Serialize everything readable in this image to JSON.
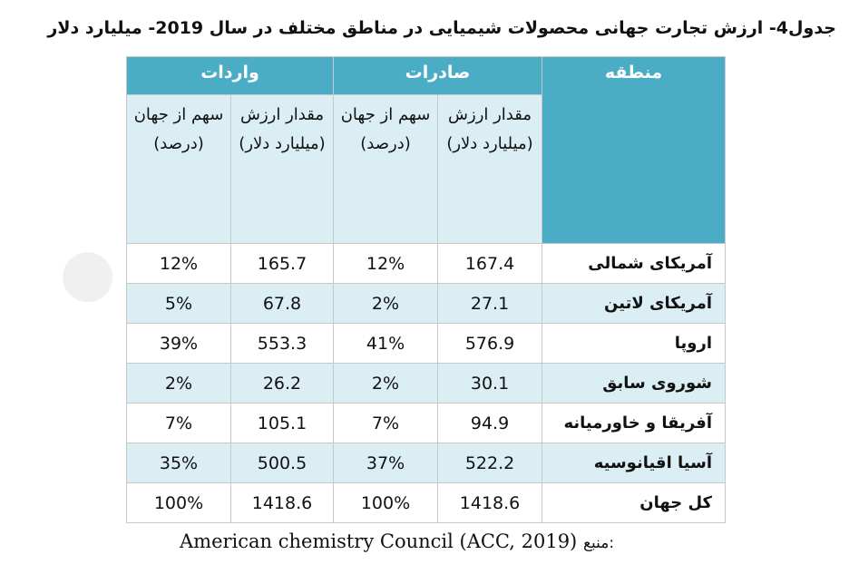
{
  "title": "جدول4- ارزش تجارت جهانی محصولات شیمیایی در مناطق مختلف در سال 2019- میلیارد دلار",
  "table": {
    "region_header": "منطقه",
    "imports_header": "واردات",
    "exports_header": "صادرات",
    "sub_share": "سهم از جهان (درصد)",
    "sub_value": "مقدار ارزش (میلیارد دلار)",
    "rows": [
      {
        "region": "آمریکای شمالی",
        "imp_share": "12%",
        "imp_value": "165.7",
        "exp_share": "12%",
        "exp_value": "167.4"
      },
      {
        "region": "آمریکای لاتین",
        "imp_share": "5%",
        "imp_value": "67.8",
        "exp_share": "2%",
        "exp_value": "27.1"
      },
      {
        "region": "اروپا",
        "imp_share": "39%",
        "imp_value": "553.3",
        "exp_share": "41%",
        "exp_value": "576.9"
      },
      {
        "region": "شوروی سابق",
        "imp_share": "2%",
        "imp_value": "26.2",
        "exp_share": "2%",
        "exp_value": "30.1"
      },
      {
        "region": "آفریقا و خاورمیانه",
        "imp_share": "7%",
        "imp_value": "105.1",
        "exp_share": "7%",
        "exp_value": "94.9"
      },
      {
        "region": "آسیا اقیانوسیه",
        "imp_share": "35%",
        "imp_value": "500.5",
        "exp_share": "37%",
        "exp_value": "522.2"
      },
      {
        "region": "کل جهان",
        "imp_share": "100%",
        "imp_value": "1418.6",
        "exp_share": "100%",
        "exp_value": "1418.6"
      }
    ]
  },
  "source": {
    "label": "منبع:",
    "text": "American chemistry Council (ACC, 2019)"
  },
  "colors": {
    "header_blue": "#4bacc6",
    "row_alt": "#dbeef4"
  }
}
